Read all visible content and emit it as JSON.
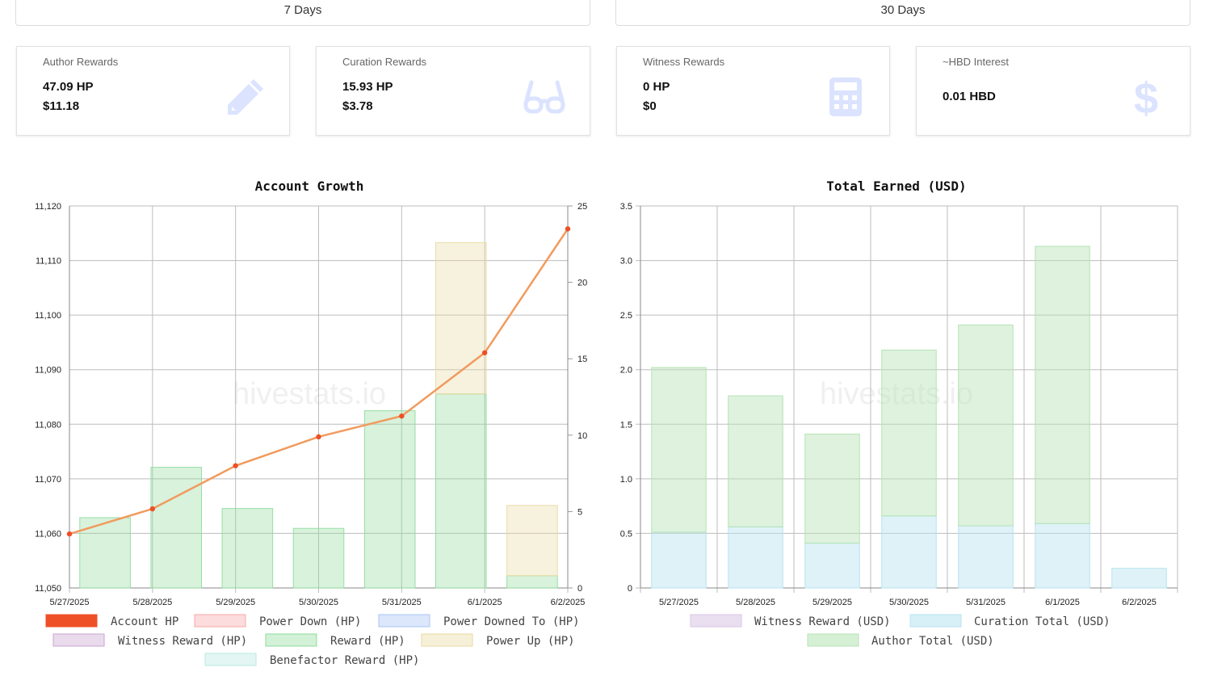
{
  "periods": [
    {
      "label": "7 Days"
    },
    {
      "label": "30 Days"
    }
  ],
  "cards": [
    {
      "title": "Author Rewards",
      "line1": "47.09 HP",
      "line2": "$11.18",
      "icon": "pencil-icon"
    },
    {
      "title": "Curation Rewards",
      "line1": "15.93 HP",
      "line2": "$3.78",
      "icon": "glasses-icon"
    },
    {
      "title": "Witness Rewards",
      "line1": "0 HP",
      "line2": "$0",
      "icon": "calculator-icon"
    },
    {
      "title": "~HBD Interest",
      "line1": "0.01 HBD",
      "icon": "dollar-icon"
    }
  ],
  "colors": {
    "accent_icon": "#dbe3ff"
  },
  "watermark": "hivestats.io",
  "chart_data": [
    {
      "type": "bar",
      "title": "Account Growth",
      "categories": [
        "5/27/2025",
        "5/28/2025",
        "5/29/2025",
        "5/30/2025",
        "5/31/2025",
        "6/1/2025",
        "6/2/2025"
      ],
      "y_left": {
        "ylim": [
          11050,
          11120
        ],
        "ticks": [
          "11,050",
          "11,060",
          "11,070",
          "11,080",
          "11,090",
          "11,100",
          "11,110",
          "11,120"
        ]
      },
      "y_right": {
        "ylim": [
          0,
          25
        ],
        "ticks": [
          "0",
          "5",
          "10",
          "15",
          "20",
          "25"
        ]
      },
      "series": [
        {
          "name": "Account HP",
          "type": "line",
          "axis": "left",
          "color": "#ee4f27",
          "line_color": "#f19b5e",
          "values": [
            11059.9,
            11064.5,
            11072.4,
            11077.7,
            11081.5,
            11093.1,
            11115.8
          ]
        },
        {
          "name": "Power Down (HP)",
          "type": "bar",
          "axis": "right",
          "color": "#f7a8a8",
          "values": [
            0,
            0,
            0,
            0,
            0,
            0,
            0
          ]
        },
        {
          "name": "Power Downed To (HP)",
          "type": "bar",
          "axis": "right",
          "color": "#a8c4f5",
          "values": [
            0,
            0,
            0,
            0,
            0,
            0,
            0
          ]
        },
        {
          "name": "Witness Reward (HP)",
          "type": "bar",
          "axis": "right",
          "color": "#c9a6d0",
          "values": [
            0,
            0,
            0,
            0,
            0,
            0,
            0
          ]
        },
        {
          "name": "Reward (HP)",
          "type": "bar",
          "axis": "right",
          "color": "#8edb9c",
          "values": [
            4.6,
            7.9,
            5.2,
            3.9,
            11.6,
            12.7,
            0.8
          ]
        },
        {
          "name": "Power Up (HP)",
          "type": "bar",
          "axis": "right",
          "color": "#e8d9a0",
          "values": [
            0,
            0,
            0,
            0,
            0,
            9.9,
            4.6
          ]
        },
        {
          "name": "Benefactor Reward (HP)",
          "type": "bar",
          "axis": "right",
          "color": "#b9e8e0",
          "values": [
            0,
            0,
            0,
            0,
            0,
            0,
            0
          ]
        }
      ]
    },
    {
      "type": "bar",
      "title": "Total Earned (USD)",
      "categories": [
        "5/27/2025",
        "5/28/2025",
        "5/29/2025",
        "5/30/2025",
        "5/31/2025",
        "6/1/2025",
        "6/2/2025"
      ],
      "ylim": [
        0,
        3.5
      ],
      "ticks": [
        "0",
        "0.5",
        "1.0",
        "1.5",
        "2.0",
        "2.5",
        "3.0",
        "3.5"
      ],
      "stacked": true,
      "series": [
        {
          "name": "Witness Reward (USD)",
          "color": "#d9c5e3",
          "values": [
            0,
            0,
            0,
            0,
            0,
            0,
            0
          ]
        },
        {
          "name": "Curation Total (USD)",
          "color": "#b7e3f0",
          "values": [
            0.51,
            0.56,
            0.41,
            0.66,
            0.57,
            0.59,
            0.18
          ]
        },
        {
          "name": "Author Total (USD)",
          "color": "#b5e3b5",
          "values": [
            1.51,
            1.2,
            1.0,
            1.52,
            1.84,
            2.54,
            0
          ]
        }
      ]
    }
  ]
}
